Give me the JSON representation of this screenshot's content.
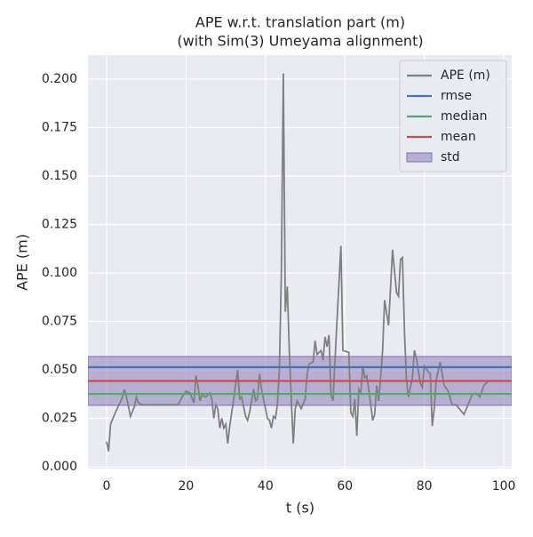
{
  "chart_data": {
    "type": "line",
    "title": "APE w.r.t. translation part (m)",
    "subtitle": "(with Sim(3) Umeyama alignment)",
    "xlabel": "t (s)",
    "ylabel": "APE (m)",
    "xlim": [
      -4.7,
      102
    ],
    "ylim": [
      -0.0009,
      0.2124
    ],
    "xticks": [
      0,
      20,
      40,
      60,
      80,
      100
    ],
    "yticks": [
      {
        "value": 0,
        "label": "0.000"
      },
      0.025,
      {
        "value": 0.05,
        "label": "0.050"
      },
      0.075,
      {
        "value": 0.1,
        "label": "0.100"
      },
      0.125,
      {
        "value": 0.15,
        "label": "0.150"
      },
      0.175,
      {
        "value": 0.2,
        "label": "0.200"
      }
    ],
    "grid": true,
    "legend": "upper right",
    "series": [
      {
        "name": "APE (m)",
        "color": "#808080",
        "x": [
          0,
          0.5,
          1,
          2,
          4,
          4.5,
          5,
          6,
          7,
          7.5,
          8,
          9,
          18,
          19,
          20,
          21,
          22,
          22.5,
          23,
          23.5,
          24,
          25,
          26,
          26.5,
          27,
          27.5,
          28,
          28.5,
          29,
          29.5,
          30,
          30.5,
          31,
          32,
          33,
          33.5,
          34,
          35,
          35.5,
          36,
          37,
          37.5,
          38,
          38.5,
          39,
          40,
          40.5,
          41,
          41.5,
          42,
          42.5,
          43,
          43.5,
          44,
          44.5,
          45,
          45.5,
          46,
          46.5,
          47,
          47.5,
          48,
          49,
          50,
          50.5,
          51,
          52,
          52.5,
          53,
          54,
          54.5,
          55,
          55.5,
          56,
          56.5,
          57,
          58,
          59,
          59.5,
          61,
          61.5,
          62,
          62.5,
          63,
          63.5,
          64,
          64.5,
          65,
          65.5,
          66,
          67,
          67.5,
          68,
          68.5,
          69,
          69.5,
          70,
          71,
          72,
          73,
          73.5,
          74,
          74.5,
          75,
          75.5,
          76,
          77,
          77.5,
          78,
          79,
          79.5,
          80,
          81,
          81.5,
          82,
          82.5,
          83,
          84,
          85,
          86,
          87,
          88,
          90,
          92,
          93,
          94,
          95,
          96
        ],
        "values": [
          0.013,
          0.008,
          0.022,
          0.027,
          0.036,
          0.04,
          0.036,
          0.026,
          0.031,
          0.036,
          0.033,
          0.032,
          0.032,
          0.036,
          0.039,
          0.038,
          0.033,
          0.047,
          0.042,
          0.034,
          0.037,
          0.036,
          0.038,
          0.035,
          0.025,
          0.032,
          0.03,
          0.02,
          0.025,
          0.02,
          0.022,
          0.012,
          0.021,
          0.035,
          0.05,
          0.035,
          0.036,
          0.026,
          0.024,
          0.028,
          0.04,
          0.034,
          0.035,
          0.048,
          0.04,
          0.03,
          0.025,
          0.024,
          0.02,
          0.026,
          0.025,
          0.032,
          0.05,
          0.1,
          0.203,
          0.08,
          0.093,
          0.06,
          0.035,
          0.012,
          0.03,
          0.034,
          0.03,
          0.035,
          0.048,
          0.053,
          0.054,
          0.065,
          0.058,
          0.06,
          0.055,
          0.067,
          0.062,
          0.068,
          0.037,
          0.034,
          0.075,
          0.114,
          0.06,
          0.059,
          0.028,
          0.026,
          0.035,
          0.016,
          0.04,
          0.038,
          0.052,
          0.046,
          0.047,
          0.04,
          0.024,
          0.027,
          0.042,
          0.034,
          0.046,
          0.06,
          0.086,
          0.073,
          0.112,
          0.09,
          0.088,
          0.107,
          0.108,
          0.07,
          0.045,
          0.036,
          0.046,
          0.06,
          0.056,
          0.043,
          0.041,
          0.052,
          0.049,
          0.048,
          0.021,
          0.03,
          0.045,
          0.054,
          0.042,
          0.039,
          0.032,
          0.032,
          0.027,
          0.037,
          0.038,
          0.036,
          0.042,
          0.044
        ]
      }
    ],
    "stats": [
      {
        "name": "rmse",
        "color": "#4c72b0",
        "value": 0.0514
      },
      {
        "name": "median",
        "color": "#55a868",
        "value": 0.0376
      },
      {
        "name": "mean",
        "color": "#c44e52",
        "value": 0.0443
      }
    ],
    "std": {
      "name": "std",
      "color": "#8172b3",
      "value": 0.0126
    }
  }
}
